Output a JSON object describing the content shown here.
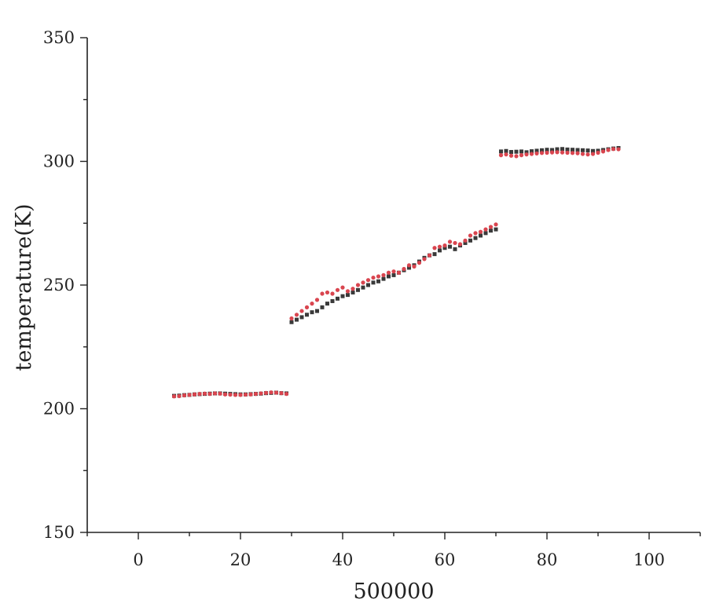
{
  "chart_data": {
    "type": "scatter",
    "xlabel": "500000",
    "ylabel": "temperature(K)",
    "xlim": [
      -10,
      110
    ],
    "ylim": [
      150,
      350
    ],
    "x_ticks": [
      "0",
      "20",
      "40",
      "60",
      "80",
      "100"
    ],
    "y_ticks": [
      "150",
      "200",
      "250",
      "300",
      "350"
    ],
    "grid": false,
    "series": [
      {
        "color": "#3a3a3a",
        "marker": "square",
        "x": [
          7,
          8,
          9,
          10,
          11,
          12,
          13,
          14,
          15,
          16,
          17,
          18,
          19,
          20,
          21,
          22,
          23,
          24,
          25,
          26,
          27,
          28,
          29,
          30,
          31,
          32,
          33,
          34,
          35,
          36,
          37,
          38,
          39,
          40,
          41,
          42,
          43,
          44,
          45,
          46,
          47,
          48,
          49,
          50,
          51,
          52,
          53,
          54,
          55,
          56,
          57,
          58,
          59,
          60,
          61,
          62,
          63,
          64,
          65,
          66,
          67,
          68,
          69,
          70,
          71,
          72,
          73,
          74,
          75,
          76,
          77,
          78,
          79,
          80,
          81,
          82,
          83,
          84,
          85,
          86,
          87,
          88,
          89,
          90,
          91,
          92,
          93,
          94
        ],
        "y": [
          205.2,
          205.3,
          205.5,
          205.6,
          205.8,
          205.9,
          206.0,
          206.1,
          206.2,
          206.2,
          206.1,
          206.0,
          205.9,
          205.8,
          205.8,
          205.9,
          206.0,
          206.1,
          206.3,
          206.4,
          206.5,
          206.3,
          206.2,
          235.0,
          236.0,
          237.0,
          238.0,
          239.0,
          239.5,
          241.0,
          242.5,
          243.5,
          244.5,
          245.5,
          246.0,
          247.0,
          248.0,
          249.0,
          250.0,
          251.0,
          251.5,
          252.5,
          253.5,
          254.0,
          255.0,
          256.0,
          257.0,
          258.0,
          259.5,
          261.0,
          262.0,
          262.5,
          264.0,
          265.0,
          265.5,
          264.5,
          266.0,
          267.0,
          268.0,
          269.0,
          270.0,
          271.0,
          272.0,
          272.5,
          304.0,
          304.2,
          303.8,
          303.9,
          304.0,
          303.7,
          304.1,
          304.3,
          304.5,
          304.7,
          304.6,
          304.9,
          305.0,
          304.8,
          304.7,
          304.6,
          304.5,
          304.4,
          304.2,
          304.3,
          304.6,
          304.9,
          305.2,
          305.4
        ]
      },
      {
        "color": "#d9454f",
        "marker": "dot",
        "x": [
          7,
          8,
          9,
          10,
          11,
          12,
          13,
          14,
          15,
          16,
          17,
          18,
          19,
          20,
          21,
          22,
          23,
          24,
          25,
          26,
          27,
          28,
          29,
          30,
          31,
          32,
          33,
          34,
          35,
          36,
          37,
          38,
          39,
          40,
          41,
          42,
          43,
          44,
          45,
          46,
          47,
          48,
          49,
          50,
          51,
          52,
          53,
          54,
          55,
          56,
          57,
          58,
          59,
          60,
          61,
          62,
          63,
          64,
          65,
          66,
          67,
          68,
          69,
          70,
          71,
          72,
          73,
          74,
          75,
          76,
          77,
          78,
          79,
          80,
          81,
          82,
          83,
          84,
          85,
          86,
          87,
          88,
          89,
          90,
          91,
          92,
          93,
          94
        ],
        "y": [
          205.0,
          205.1,
          205.4,
          205.6,
          205.8,
          206.0,
          206.1,
          206.0,
          206.2,
          206.1,
          205.8,
          205.7,
          205.6,
          205.6,
          205.7,
          205.8,
          206.0,
          206.2,
          206.4,
          206.6,
          206.5,
          206.3,
          206.0,
          236.5,
          238.0,
          239.5,
          241.0,
          242.5,
          244.0,
          246.5,
          247.0,
          246.5,
          248.0,
          249.0,
          247.5,
          248.5,
          250.0,
          251.0,
          252.0,
          253.0,
          253.5,
          254.0,
          255.0,
          255.5,
          255.0,
          256.5,
          258.0,
          257.5,
          259.0,
          260.5,
          262.0,
          265.0,
          265.5,
          266.0,
          267.5,
          267.0,
          266.5,
          268.0,
          270.0,
          271.0,
          271.5,
          272.5,
          273.5,
          274.5,
          302.5,
          302.8,
          302.3,
          302.1,
          302.5,
          302.8,
          303.0,
          303.2,
          303.4,
          303.5,
          303.6,
          303.7,
          303.6,
          303.5,
          303.4,
          303.3,
          303.0,
          302.8,
          303.0,
          303.5,
          304.0,
          304.6,
          305.0,
          304.9
        ]
      }
    ]
  }
}
